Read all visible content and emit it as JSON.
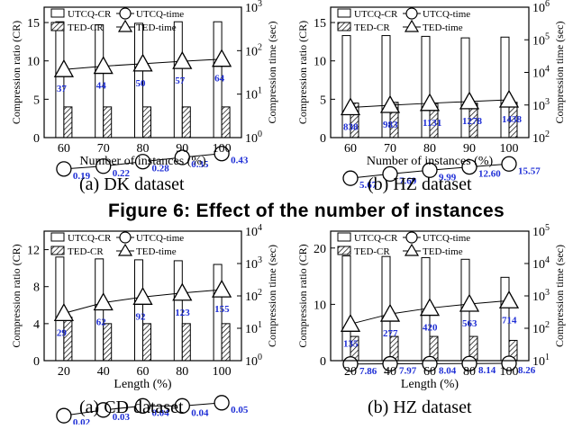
{
  "figure_title": "Figure 6: Effect of the number of instances",
  "captions": [
    "(a) DK dataset",
    "(b) HZ dataset",
    "(a) CD dataset",
    "(b) HZ dataset"
  ],
  "legend_labels": {
    "utcq_cr": "UTCQ-CR",
    "utcq_time": "UTCQ-time",
    "ted_cr": "TED-CR",
    "ted_time": "TED-time"
  },
  "colors": {
    "axis": "#000000",
    "annotation": "#1f2fd6"
  },
  "chart_data": [
    {
      "type": "bar",
      "xlabel": "Number of instances (%)",
      "ylabel": "Compression ratio (CR)",
      "y2label": "Compression time (sec)",
      "categories": [
        "60",
        "70",
        "80",
        "90",
        "100"
      ],
      "ylim": [
        0,
        17
      ],
      "yticks": [
        0,
        5,
        10,
        15
      ],
      "y2scale": "log",
      "y2lim": [
        1,
        1000
      ],
      "y2ticks": [
        {
          "v": 1,
          "base": "10",
          "exp": "0"
        },
        {
          "v": 10,
          "base": "10",
          "exp": "1"
        },
        {
          "v": 100,
          "base": "10",
          "exp": "2"
        },
        {
          "v": 1000,
          "base": "10",
          "exp": "3"
        }
      ],
      "series": [
        {
          "name": "UTCQ-CR",
          "kind": "bar",
          "pattern": "open",
          "values": [
            15.1,
            14.7,
            14.9,
            15.1,
            15.1
          ]
        },
        {
          "name": "TED-CR",
          "kind": "bar",
          "pattern": "hatch",
          "values": [
            4.0,
            4.0,
            4.0,
            4.0,
            4.0
          ]
        },
        {
          "name": "UTCQ-time",
          "kind": "line",
          "marker": "circle",
          "values": [
            0.19,
            0.22,
            0.28,
            0.35,
            0.43
          ],
          "labels": [
            "0.19",
            "0.22",
            "0.28",
            "0.35",
            "0.43"
          ]
        },
        {
          "name": "TED-time",
          "kind": "line",
          "marker": "triangle",
          "values": [
            37,
            44,
            50,
            57,
            64
          ],
          "labels": [
            "37",
            "44",
            "50",
            "57",
            "64"
          ]
        }
      ]
    },
    {
      "type": "bar",
      "xlabel": "Number of instances (%)",
      "ylabel": "Compression ratio (CR)",
      "y2label": "Compression time (sec)",
      "categories": [
        "60",
        "70",
        "80",
        "90",
        "100"
      ],
      "ylim": [
        0,
        17
      ],
      "yticks": [
        0,
        5,
        10,
        15
      ],
      "y2scale": "log",
      "y2lim": [
        100,
        1000000
      ],
      "y2ticks": [
        {
          "v": 100,
          "base": "10",
          "exp": "2"
        },
        {
          "v": 1000,
          "base": "10",
          "exp": "3"
        },
        {
          "v": 10000,
          "base": "10",
          "exp": "4"
        },
        {
          "v": 100000,
          "base": "10",
          "exp": "5"
        },
        {
          "v": 1000000,
          "base": "10",
          "exp": "6"
        }
      ],
      "series": [
        {
          "name": "UTCQ-CR",
          "kind": "bar",
          "pattern": "open",
          "values": [
            13.3,
            13.3,
            13.2,
            13.0,
            13.1
          ]
        },
        {
          "name": "TED-CR",
          "kind": "bar",
          "pattern": "hatch",
          "values": [
            4.5,
            4.6,
            4.5,
            4.5,
            4.6
          ]
        },
        {
          "name": "UTCQ-time",
          "kind": "line",
          "marker": "circle",
          "values": [
            5.67,
            7.69,
            9.99,
            12.6,
            15.57
          ],
          "labels": [
            "5.67",
            "7.69",
            "9.99",
            "12.60",
            "15.57"
          ]
        },
        {
          "name": "TED-time",
          "kind": "line",
          "marker": "triangle",
          "values": [
            838,
            983,
            1131,
            1278,
            1438
          ],
          "labels": [
            "838",
            "983",
            "1131",
            "1278",
            "1438"
          ]
        }
      ]
    },
    {
      "type": "bar",
      "xlabel": "Length (%)",
      "ylabel": "Compression ratio (CR)",
      "y2label": "Compression time (sec)",
      "categories": [
        "20",
        "40",
        "60",
        "80",
        "100"
      ],
      "ylim": [
        0,
        14
      ],
      "yticks": [
        0,
        4,
        8,
        12
      ],
      "y2scale": "log",
      "y2lim": [
        1,
        10000
      ],
      "y2ticks": [
        {
          "v": 1,
          "base": "10",
          "exp": "0"
        },
        {
          "v": 10,
          "base": "10",
          "exp": "1"
        },
        {
          "v": 100,
          "base": "10",
          "exp": "2"
        },
        {
          "v": 1000,
          "base": "10",
          "exp": "3"
        },
        {
          "v": 10000,
          "base": "10",
          "exp": "4"
        }
      ],
      "series": [
        {
          "name": "UTCQ-CR",
          "kind": "bar",
          "pattern": "open",
          "values": [
            11.2,
            11.0,
            10.9,
            10.8,
            10.4
          ]
        },
        {
          "name": "TED-CR",
          "kind": "bar",
          "pattern": "hatch",
          "values": [
            4.7,
            4.0,
            4.0,
            4.0,
            4.0
          ]
        },
        {
          "name": "UTCQ-time",
          "kind": "line",
          "marker": "circle",
          "values": [
            0.02,
            0.03,
            0.04,
            0.04,
            0.05
          ],
          "labels": [
            "0.02",
            "0.03",
            "0.04",
            "0.04",
            "0.05"
          ]
        },
        {
          "name": "TED-time",
          "kind": "line",
          "marker": "triangle",
          "values": [
            29,
            62,
            92,
            123,
            155
          ],
          "labels": [
            "29",
            "62",
            "92",
            "123",
            "155"
          ]
        }
      ]
    },
    {
      "type": "bar",
      "xlabel": "Length (%)",
      "ylabel": "Compression ratio (CR)",
      "y2label": "Compression time (sec)",
      "categories": [
        "20",
        "40",
        "60",
        "80",
        "100"
      ],
      "ylim": [
        0,
        23
      ],
      "yticks": [
        0,
        10,
        20
      ],
      "y2scale": "log",
      "y2lim": [
        10,
        100000
      ],
      "y2ticks": [
        {
          "v": 10,
          "base": "10",
          "exp": "1"
        },
        {
          "v": 100,
          "base": "10",
          "exp": "2"
        },
        {
          "v": 1000,
          "base": "10",
          "exp": "3"
        },
        {
          "v": 10000,
          "base": "10",
          "exp": "4"
        },
        {
          "v": 100000,
          "base": "10",
          "exp": "5"
        }
      ],
      "series": [
        {
          "name": "UTCQ-CR",
          "kind": "bar",
          "pattern": "open",
          "values": [
            18.6,
            18.5,
            18.3,
            18.0,
            14.8
          ]
        },
        {
          "name": "TED-CR",
          "kind": "bar",
          "pattern": "hatch",
          "values": [
            4.3,
            4.3,
            4.3,
            4.3,
            3.6
          ]
        },
        {
          "name": "UTCQ-time",
          "kind": "line",
          "marker": "circle",
          "values": [
            7.86,
            7.97,
            8.04,
            8.14,
            8.26
          ],
          "labels": [
            "7.86",
            "7.97",
            "8.04",
            "8.14",
            "8.26"
          ]
        },
        {
          "name": "TED-time",
          "kind": "line",
          "marker": "triangle",
          "values": [
            135,
            277,
            420,
            563,
            714
          ],
          "labels": [
            "135",
            "277",
            "420",
            "563",
            "714"
          ]
        }
      ]
    }
  ]
}
